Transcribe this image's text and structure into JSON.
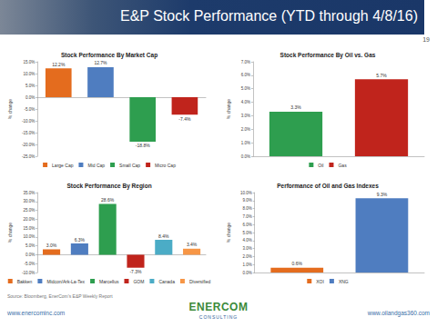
{
  "slide": {
    "title": "E&P Stock Performance (YTD through 4/8/16)",
    "page_number": "19",
    "source": "Source: Bloomberg, EnerCom's E&P Weekly Report",
    "links": [
      "www.enercominc.com",
      "www.oilandgas360.com"
    ],
    "logo": [
      "ENERCOM",
      "CONSULTING"
    ]
  },
  "chart_data": [
    {
      "type": "bar",
      "title": "Stock Performance By Market Cap",
      "y_label": "% change",
      "categories": [
        "Large Cap",
        "Mid Cap",
        "Small Cap",
        "Micro Cap"
      ],
      "values": [
        12.2,
        12.7,
        -18.8,
        -7.4
      ],
      "value_labels": [
        "12.2%",
        "12.7%",
        "-18.8%",
        "-7.4%"
      ],
      "colors": [
        "#e46c1e",
        "#4f7dc0",
        "#2e9e4f",
        "#c0241c"
      ],
      "ylim": [
        -25,
        15
      ],
      "yticks": [
        {
          "value": -25,
          "label": "-25.0%"
        },
        {
          "value": -20,
          "label": "-20.0%"
        },
        {
          "value": -15,
          "label": "-15.0%"
        },
        {
          "value": -10,
          "label": "-10.0%"
        },
        {
          "value": -5,
          "label": "-5.0%"
        },
        {
          "value": 0,
          "label": "0.0%"
        },
        {
          "value": 5,
          "label": "5.0%"
        },
        {
          "value": 10,
          "label": "10.0%"
        },
        {
          "value": 15,
          "label": "15.0%"
        }
      ],
      "grid": false,
      "legend": "bottom",
      "data_labels": true,
      "tick_labels": "y"
    },
    {
      "type": "bar",
      "title": "Stock Performance By Oil vs. Gas",
      "y_label": "% change",
      "categories": [
        "Oil",
        "Gas"
      ],
      "values": [
        3.3,
        5.7
      ],
      "value_labels": [
        "3.3%",
        "5.7%"
      ],
      "colors": [
        "#2e9e4f",
        "#c0241c"
      ],
      "ylim": [
        0,
        7
      ],
      "yticks": [
        {
          "value": 0,
          "label": "0.0%"
        },
        {
          "value": 1,
          "label": "1.0%"
        },
        {
          "value": 2,
          "label": "2.0%"
        },
        {
          "value": 3,
          "label": "3.0%"
        },
        {
          "value": 4,
          "label": "4.0%"
        },
        {
          "value": 5,
          "label": "5.0%"
        },
        {
          "value": 6,
          "label": "6.0%"
        },
        {
          "value": 7,
          "label": "7.0%"
        }
      ],
      "grid": false,
      "legend": "bottom",
      "data_labels": true,
      "tick_labels": "y"
    },
    {
      "type": "bar",
      "title": "Stock Performance By Region",
      "y_label": "% change",
      "categories": [
        "Bakken",
        "Midcon/Ark-La-Tex",
        "Marcellus",
        "GOM",
        "Canada",
        "Diversified"
      ],
      "values": [
        3.0,
        6.3,
        28.6,
        -7.3,
        8.4,
        3.4
      ],
      "value_labels": [
        "3.0%",
        "6.3%",
        "28.6%",
        "-7.3%",
        "8.4%",
        "3.4%"
      ],
      "colors": [
        "#e46c1e",
        "#4f7dc0",
        "#2e9e4f",
        "#c0241c",
        "#4bacc6",
        "#f79646"
      ],
      "ylim": [
        -10,
        35
      ],
      "yticks": [
        {
          "value": -10,
          "label": "-10.0%"
        },
        {
          "value": -5,
          "label": "-5.0%"
        },
        {
          "value": 0,
          "label": "0.0%"
        },
        {
          "value": 5,
          "label": "5.0%"
        },
        {
          "value": 10,
          "label": "10.0%"
        },
        {
          "value": 15,
          "label": "15.0%"
        },
        {
          "value": 20,
          "label": "20.0%"
        },
        {
          "value": 25,
          "label": "25.0%"
        },
        {
          "value": 30,
          "label": "30.0%"
        },
        {
          "value": 35,
          "label": "35.0%"
        }
      ],
      "grid": false,
      "legend": "bottom",
      "data_labels": true,
      "tick_labels": "y"
    },
    {
      "type": "bar",
      "title": "Performance of Oil and Gas Indexes",
      "y_label": "% change",
      "categories": [
        "XOI",
        "XNG"
      ],
      "values": [
        0.6,
        9.3
      ],
      "value_labels": [
        "0.6%",
        "9.3%"
      ],
      "colors": [
        "#e46c1e",
        "#4f7dc0"
      ],
      "ylim": [
        0,
        10
      ],
      "yticks": [
        {
          "value": 0,
          "label": "0.0%"
        },
        {
          "value": 1,
          "label": "1.0%"
        },
        {
          "value": 2,
          "label": "2.0%"
        },
        {
          "value": 3,
          "label": "3.0%"
        },
        {
          "value": 4,
          "label": "4.0%"
        },
        {
          "value": 5,
          "label": "5.0%"
        },
        {
          "value": 6,
          "label": "6.0%"
        },
        {
          "value": 7,
          "label": "7.0%"
        },
        {
          "value": 8,
          "label": "8.0%"
        },
        {
          "value": 9,
          "label": "9.0%"
        },
        {
          "value": 10,
          "label": "10.0%"
        }
      ],
      "grid": false,
      "legend": "bottom",
      "data_labels": true,
      "tick_labels": "y"
    }
  ]
}
